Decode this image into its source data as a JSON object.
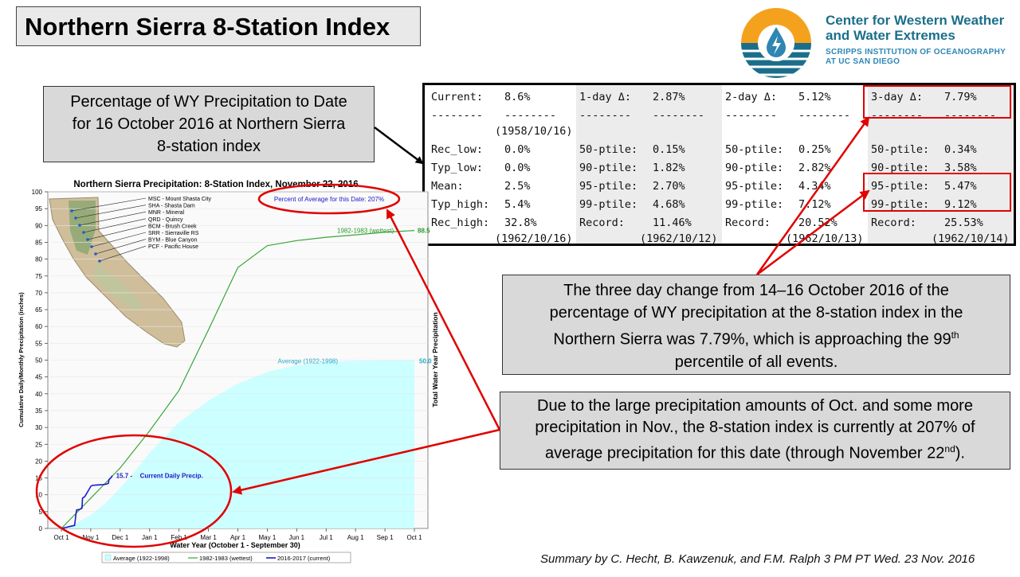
{
  "title": "Northern Sierra 8-Station Index",
  "logo": {
    "line1": "Center for Western Weather",
    "line2": "and Water Extremes",
    "line3": "SCRIPPS INSTITUTION OF OCEANOGRAPHY",
    "line4": "AT UC SAN DIEGO",
    "colors": {
      "orange": "#f4a21d",
      "teal": "#1b6e8a",
      "blue": "#2e86b3"
    }
  },
  "callouts": {
    "c1": [
      "Percentage of WY Precipitation to Date",
      "for 16 October 2016 at Northern Sierra",
      "8-station index"
    ],
    "c2": {
      "line1": "The three day change from 14–16 October 2016 of the",
      "line2": "percentage of WY precipitation at the 8-station index in the",
      "line3a": "Northern Sierra was 7.79%, which is approaching the 99",
      "line3sup": "th",
      "line4": "percentile of all events."
    },
    "c3": {
      "line1": "Due to the large precipitation amounts of Oct. and some more",
      "line2": "precipitation in Nov., the 8-station index is currently at 207% of",
      "line3a": "average precipitation for this date (through November 22",
      "line3sup": "nd",
      "line3b": ")."
    }
  },
  "stats_table": {
    "col1": [
      {
        "label": "Current:",
        "value": "8.6%"
      },
      {
        "label": "--------",
        "value": "--------"
      },
      {
        "label": "",
        "value": "(1958/10/16)"
      },
      {
        "label": "Rec_low:",
        "value": "0.0%"
      },
      {
        "label": "Typ_low:",
        "value": "0.0%"
      },
      {
        "label": "Mean:",
        "value": "2.5%"
      },
      {
        "label": "Typ_high:",
        "value": "5.4%"
      },
      {
        "label": "Rec_high:",
        "value": "32.8%"
      },
      {
        "label": "",
        "value": "(1962/10/16)"
      }
    ],
    "col2": [
      {
        "label": "1-day Δ:",
        "value": "2.87%"
      },
      {
        "label": "--------",
        "value": "--------"
      },
      {
        "label": "50-ptile:",
        "value": "0.15%"
      },
      {
        "label": "90-ptile:",
        "value": "1.82%"
      },
      {
        "label": "95-ptile:",
        "value": "2.70%"
      },
      {
        "label": "99-ptile:",
        "value": "4.68%"
      },
      {
        "label": "Record:",
        "value": "11.46%"
      },
      {
        "label": "",
        "value": "(1962/10/12)"
      }
    ],
    "col3": [
      {
        "label": "2-day Δ:",
        "value": "5.12%"
      },
      {
        "label": "--------",
        "value": "--------"
      },
      {
        "label": "50-ptile:",
        "value": "0.25%"
      },
      {
        "label": "90-ptile:",
        "value": "2.82%"
      },
      {
        "label": "95-ptile:",
        "value": "4.34%"
      },
      {
        "label": "99-ptile:",
        "value": "7.12%"
      },
      {
        "label": "Record:",
        "value": "20.52%"
      },
      {
        "label": "",
        "value": "(1962/10/13)"
      }
    ],
    "col4": [
      {
        "label": "3-day Δ:",
        "value": "7.79%"
      },
      {
        "label": "--------",
        "value": "--------"
      },
      {
        "label": "50-ptile:",
        "value": "0.34%"
      },
      {
        "label": "90-ptile:",
        "value": "3.58%"
      },
      {
        "label": "95-ptile:",
        "value": "5.47%"
      },
      {
        "label": "99-ptile:",
        "value": "9.12%"
      },
      {
        "label": "Record:",
        "value": "25.53%"
      },
      {
        "label": "",
        "value": "(1962/10/14)"
      }
    ]
  },
  "footer": "Summary by C. Hecht, B. Kawzenuk, and F.M. Ralph 3 PM PT Wed. 23 Nov. 2016",
  "chart_data": {
    "type": "line",
    "title": "Northern Sierra Precipitation: 8-Station Index, November 22, 2016",
    "xlabel": "Water Year (October 1 - September 30)",
    "ylabel": "Cumulative Daily/Monthly Precipitation (inches)",
    "y2label": "Total Water Year Precipitation",
    "ylim": [
      0,
      100
    ],
    "yticks": [
      0,
      5,
      10,
      15,
      20,
      25,
      30,
      35,
      40,
      45,
      50,
      55,
      60,
      65,
      70,
      75,
      80,
      85,
      90,
      95,
      100
    ],
    "xticks": [
      "Oct 1",
      "Nov 1",
      "Dec 1",
      "Jan 1",
      "Feb 1",
      "Mar 1",
      "Apr 1",
      "May 1",
      "Jun 1",
      "Jul 1",
      "Aug 1",
      "Sep 1",
      "Oct 1"
    ],
    "pct_of_average_label": "Percent of Average for this Date: 207%",
    "stations": [
      "MSC - Mount Shasta City",
      "SHA - Shasta Dam",
      "MNR - Mineral",
      "QRD - Quincy",
      "BCM - Brush Creek",
      "SRR - Sierraville RS",
      "BYM - Blue Canyon",
      "PCF - Pacific House"
    ],
    "series": [
      {
        "name": "Average (1922-1998)",
        "label": "Average (1922-1998)",
        "end_label": "50.0",
        "color": "#ccffff",
        "x": [
          0,
          0.5,
          1,
          1.5,
          2,
          2.5,
          3,
          3.5,
          4,
          5,
          6,
          7,
          8,
          9,
          10,
          11,
          12
        ],
        "values": [
          0,
          1.5,
          4,
          7.5,
          12,
          17,
          22.5,
          27,
          31.5,
          38,
          43,
          46.5,
          48.5,
          49.5,
          49.8,
          50,
          50
        ]
      },
      {
        "name": "1982-1983 (wettest)",
        "label": "1982-1983 (wettest)",
        "end_label": "88.5",
        "color": "#3aa63a",
        "x": [
          0,
          1,
          2,
          3,
          4,
          5,
          6,
          7,
          8,
          9,
          10,
          11,
          12
        ],
        "values": [
          0,
          9,
          18,
          29,
          41,
          59,
          77.5,
          84,
          85.5,
          86.5,
          87.2,
          88,
          88.5
        ]
      },
      {
        "name": "2016-2017 (current)",
        "label": "Current Daily Precip.",
        "end_label": "15.7",
        "color": "#1a1acc",
        "x": [
          0,
          0.15,
          0.3,
          0.45,
          0.5,
          0.52,
          0.6,
          0.65,
          0.7,
          0.72,
          0.8,
          0.9,
          1.0,
          1.05,
          1.2,
          1.4,
          1.5,
          1.6,
          1.62,
          1.7,
          1.73
        ],
        "values": [
          0,
          0.3,
          0.6,
          0.9,
          4.5,
          5.5,
          5.6,
          5.8,
          6.0,
          9.0,
          9.5,
          11.0,
          12.5,
          12.8,
          12.9,
          13.0,
          13.1,
          13.4,
          14.5,
          15.2,
          15.7
        ]
      }
    ],
    "legend": [
      "Average (1922-1998)",
      "1982-1983 (wettest)",
      "2016-2017 (current)"
    ]
  }
}
